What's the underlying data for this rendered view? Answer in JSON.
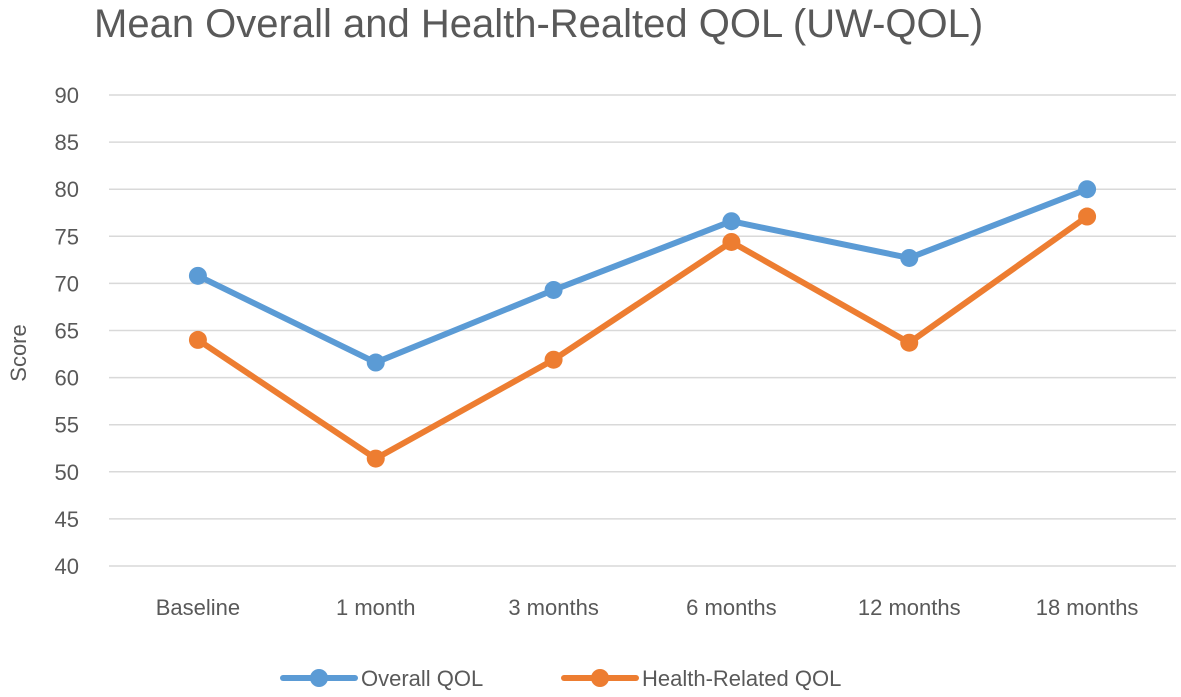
{
  "chart_data": {
    "type": "line",
    "title": "Mean Overall and Health-Realted QOL (UW-QOL)",
    "xlabel": "",
    "ylabel": "Score",
    "ylim": [
      40,
      90
    ],
    "yticks": [
      40,
      45,
      50,
      55,
      60,
      65,
      70,
      75,
      80,
      85,
      90
    ],
    "grid": true,
    "legend_position": "bottom",
    "categories": [
      "Baseline",
      "1 month",
      "3 months",
      "6 months",
      "12 months",
      "18 months"
    ],
    "series": [
      {
        "name": "Overall QOL",
        "color": "#5B9BD5",
        "values": [
          70.8,
          61.6,
          69.3,
          76.6,
          72.7,
          80.0
        ]
      },
      {
        "name": "Health-Related QOL",
        "color": "#ED7D31",
        "values": [
          64.0,
          51.4,
          61.9,
          74.4,
          63.7,
          77.1
        ]
      }
    ]
  }
}
